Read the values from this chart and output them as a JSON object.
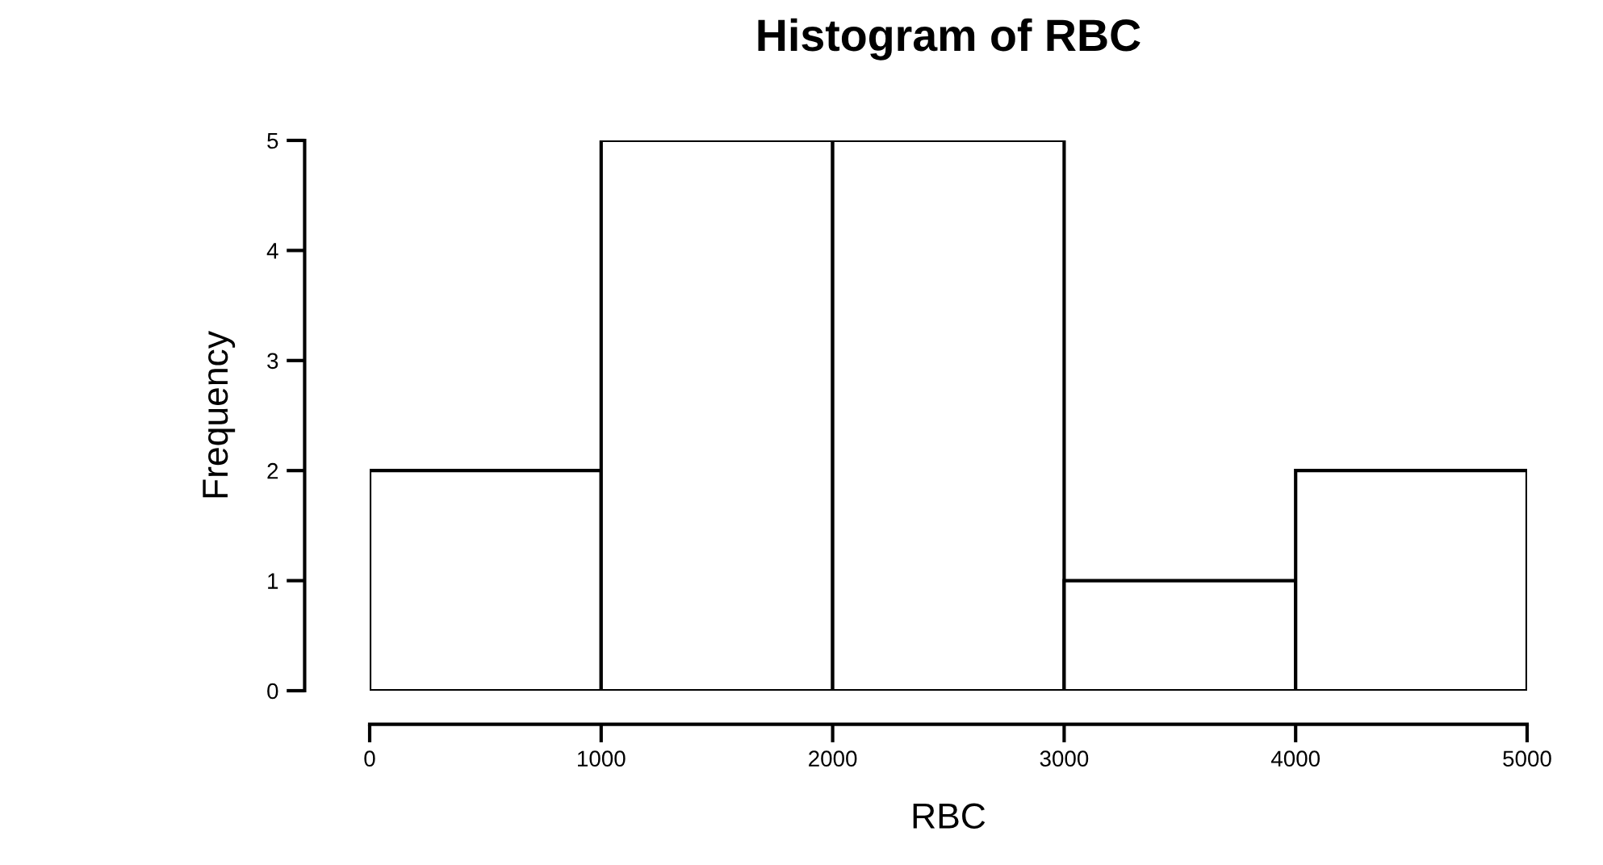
{
  "chart_data": {
    "type": "histogram",
    "title": "Histogram of RBC",
    "xlabel": "RBC",
    "ylabel": "Frequency",
    "bins": [
      0,
      1000,
      2000,
      3000,
      4000,
      5000
    ],
    "values": [
      2,
      5,
      5,
      1,
      2
    ],
    "color": "#ffffff",
    "xlim": [
      0,
      5000
    ],
    "xticks": [
      0,
      1000,
      2000,
      3000,
      4000,
      5000
    ],
    "ylim": [
      0,
      5
    ],
    "yticks": [
      0,
      1,
      2,
      3,
      4,
      5
    ],
    "grid": false,
    "legend": false
  }
}
